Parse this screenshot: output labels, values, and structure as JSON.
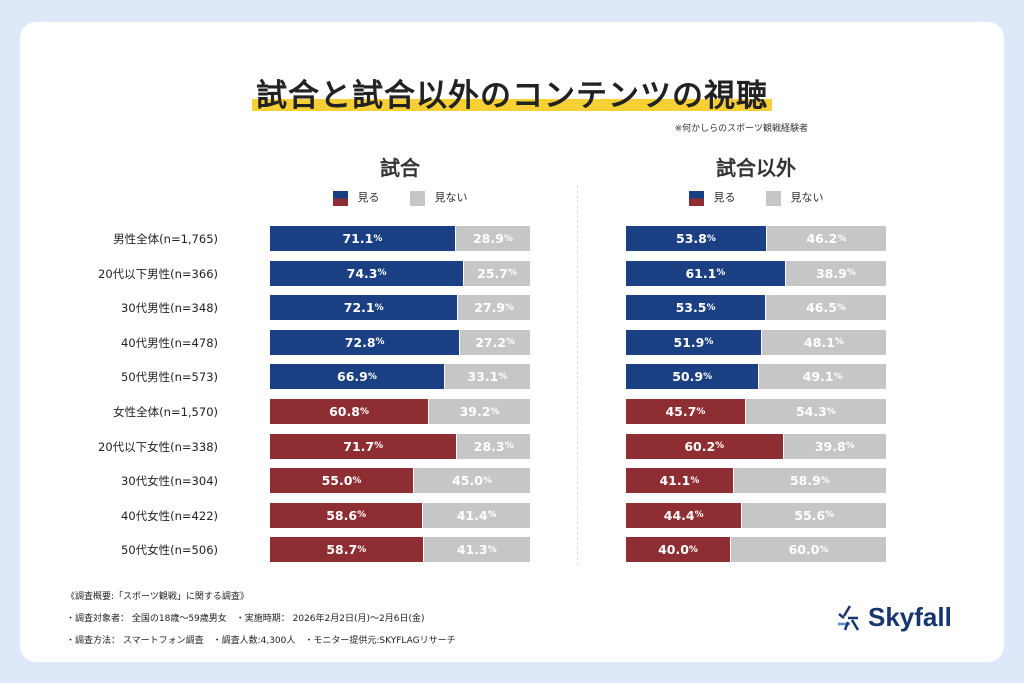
{
  "title": "試合と試合以外のコンテンツの視聴",
  "note": "※何かしらのスポーツ観戦経験者",
  "legend": {
    "see": "見る",
    "not_see": "見ない"
  },
  "colors": {
    "male": "#1a3f82",
    "female": "#8e2e32",
    "not_see": "#c6c6c6"
  },
  "chart_data": [
    {
      "type": "bar",
      "stacked": true,
      "orientation": "horizontal",
      "title": "試合",
      "categories": [
        "男性全体(n=1,765)",
        "20代以下男性(n=366)",
        "30代男性(n=348)",
        "40代男性(n=478)",
        "50代男性(n=573)",
        "女性全体(n=1,570)",
        "20代以下女性(n=338)",
        "30代女性(n=304)",
        "40代女性(n=422)",
        "50代女性(n=506)"
      ],
      "series": [
        {
          "name": "見る",
          "values": [
            71.1,
            74.3,
            72.1,
            72.8,
            66.9,
            60.8,
            71.7,
            55.0,
            58.6,
            58.7
          ]
        },
        {
          "name": "見ない",
          "values": [
            28.9,
            25.7,
            27.9,
            27.2,
            33.1,
            39.2,
            28.3,
            45.0,
            41.4,
            41.3
          ]
        }
      ],
      "xlim": [
        0,
        100
      ],
      "unit": "%"
    },
    {
      "type": "bar",
      "stacked": true,
      "orientation": "horizontal",
      "title": "試合以外",
      "categories": [
        "男性全体(n=1,765)",
        "20代以下男性(n=366)",
        "30代男性(n=348)",
        "40代男性(n=478)",
        "50代男性(n=573)",
        "女性全体(n=1,570)",
        "20代以下女性(n=338)",
        "30代女性(n=304)",
        "40代女性(n=422)",
        "50代女性(n=506)"
      ],
      "series": [
        {
          "name": "見る",
          "values": [
            53.8,
            61.1,
            53.5,
            51.9,
            50.9,
            45.7,
            60.2,
            41.1,
            44.4,
            40.0
          ]
        },
        {
          "name": "見ない",
          "values": [
            46.2,
            38.9,
            46.5,
            48.1,
            49.1,
            54.3,
            39.8,
            58.9,
            55.6,
            60.0
          ]
        }
      ],
      "xlim": [
        0,
        100
      ],
      "unit": "%"
    }
  ],
  "footer": [
    "《調査概要:「スポーツ観戦」に関する調査》",
    "・調査対象者： 全国の18歳～59歳男女　・実施時期： 2026年2月2日(月)～2月6日(金)",
    "・調査方法： スマートフォン調査　・調査人数:4,300人　・モニター提供元:SKYFLAGリサーチ"
  ],
  "logo": "Skyfall"
}
